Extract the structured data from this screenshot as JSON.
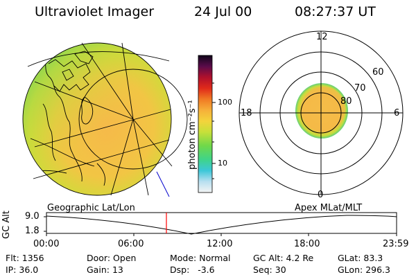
{
  "header": {
    "instrument": "Ultraviolet Imager",
    "date": "24 Jul 00",
    "time": "08:27:37 UT"
  },
  "colorbar": {
    "unit_label": "photon cm⁻²s⁻¹",
    "ticks": [
      "100",
      "10"
    ]
  },
  "polar_plot": {
    "mlt_labels": {
      "top": "12",
      "left": "18",
      "right": "6",
      "bottom": "0"
    },
    "mlat_labels": [
      "60",
      "70",
      "80"
    ]
  },
  "panel_labels": {
    "left": "Geographic Lat/Lon",
    "right": "Apex MLat/MLT"
  },
  "altitude_plot": {
    "ylabel": "GC Alt",
    "yticks": [
      "9.0",
      "1.8"
    ],
    "xticks": [
      "00:00",
      "06:00",
      "12:00",
      "18:00",
      "23:59"
    ]
  },
  "footer": {
    "rows": [
      [
        {
          "label": "Flt:",
          "value": "1356"
        },
        {
          "label": "Door:",
          "value": "Open"
        },
        {
          "label": "Mode:",
          "value": "Normal"
        },
        {
          "label": "GC Alt:",
          "value": "4.2 Re"
        },
        {
          "label": "GLat:",
          "value": "83.3"
        }
      ],
      [
        {
          "label": "IP:",
          "value": "36.0"
        },
        {
          "label": "Gain:",
          "value": "13"
        },
        {
          "label": "Dsp:",
          "value": "-3.6"
        },
        {
          "label": "Seq:",
          "value": "30"
        },
        {
          "label": "GLon:",
          "value": "296.3"
        }
      ]
    ]
  },
  "colors": {
    "marker": "#ff0000",
    "track": "#0000cc"
  }
}
